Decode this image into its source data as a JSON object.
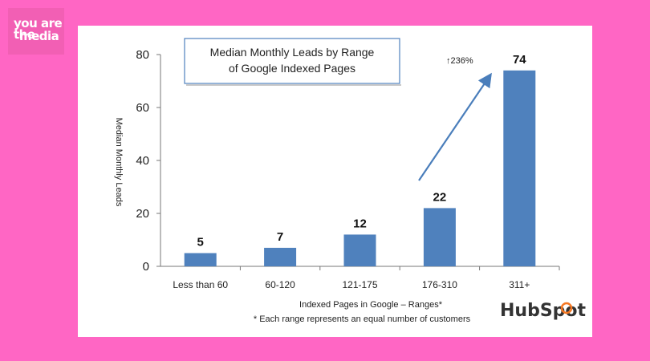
{
  "brand": {
    "logo_line1": "you are the",
    "logo_line2": "media",
    "hubspot": "HubSpot"
  },
  "colors": {
    "background": "#ff66c4",
    "bar": "#4f81bd",
    "arrow": "#4a7ebb",
    "hubspot_accent": "#f57722"
  },
  "chart_data": {
    "type": "bar",
    "title_line1": "Median Monthly Leads by Range",
    "title_line2": "of Google Indexed Pages",
    "xlabel": "Indexed Pages in Google – Ranges*",
    "ylabel": "Median Monthly Leads",
    "footnote": "* Each range represents an equal number of customers",
    "categories": [
      "Less than 60",
      "60-120",
      "121-175",
      "176-310",
      "311+"
    ],
    "values": [
      5,
      7,
      12,
      22,
      74
    ],
    "ylim": [
      0,
      80
    ],
    "yticks": [
      0,
      20,
      40,
      60,
      80
    ],
    "grid": false,
    "annotation": "↑236%"
  }
}
